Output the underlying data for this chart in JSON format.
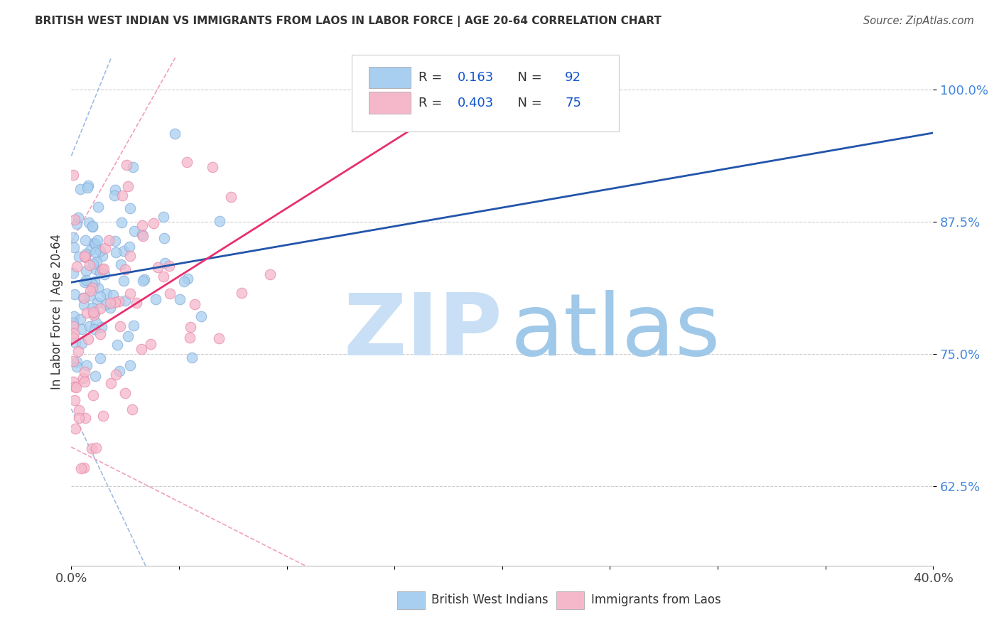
{
  "title": "BRITISH WEST INDIAN VS IMMIGRANTS FROM LAOS IN LABOR FORCE | AGE 20-64 CORRELATION CHART",
  "source": "Source: ZipAtlas.com",
  "ylabel": "In Labor Force | Age 20-64",
  "xlim": [
    0.0,
    0.4
  ],
  "ylim": [
    0.55,
    1.03
  ],
  "xticks": [
    0.0,
    0.05,
    0.1,
    0.15,
    0.2,
    0.25,
    0.3,
    0.35,
    0.4
  ],
  "xticklabels": [
    "0.0%",
    "",
    "",
    "",
    "",
    "",
    "",
    "",
    "40.0%"
  ],
  "ytick_positions": [
    0.625,
    0.75,
    0.875,
    1.0
  ],
  "ytick_labels": [
    "62.5%",
    "75.0%",
    "87.5%",
    "100.0%"
  ],
  "blue_color": "#A8CFF0",
  "blue_edge_color": "#85ADDC",
  "pink_color": "#F5B8CB",
  "pink_edge_color": "#E88BA8",
  "blue_line_color": "#2255AA",
  "pink_line_color": "#E83070",
  "blue_ci_color": "#88AADD",
  "pink_ci_color": "#EE88AA",
  "legend_R1": "0.163",
  "legend_N1": "92",
  "legend_R2": "0.403",
  "legend_N2": "75",
  "legend_text_color": "#333333",
  "legend_value_color": "#1155CC",
  "grid_color": "#CCCCCC",
  "title_color": "#333333",
  "source_color": "#555555",
  "ytick_color": "#4488DD",
  "watermark_zip_color": "#C8DFF5",
  "watermark_atlas_color": "#A0C8E8"
}
